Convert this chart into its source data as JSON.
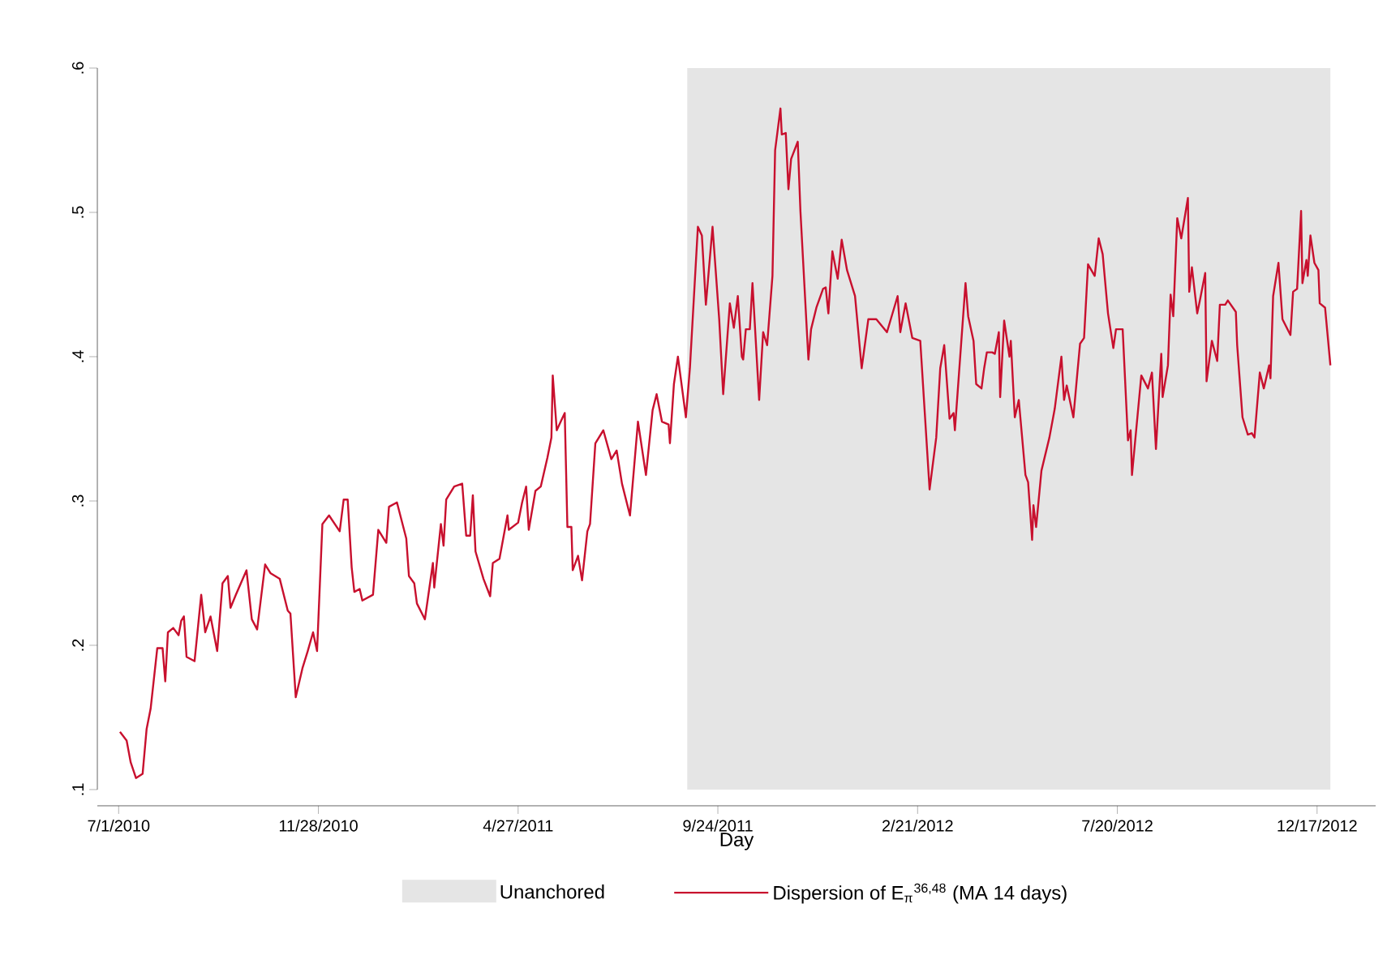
{
  "chart_data": {
    "type": "line",
    "xlabel": "Day",
    "xlim": [
      "2010-06-15",
      "2013-01-30"
    ],
    "ylim": [
      0.1,
      0.6
    ],
    "xticks": [
      {
        "value": "2010-07-01",
        "label": "7/1/2010"
      },
      {
        "value": "2010-11-28",
        "label": "11/28/2010"
      },
      {
        "value": "2011-04-27",
        "label": "4/27/2011"
      },
      {
        "value": "2011-09-24",
        "label": "9/24/2011"
      },
      {
        "value": "2012-02-21",
        "label": "2/21/2012"
      },
      {
        "value": "2012-07-20",
        "label": "7/20/2012"
      },
      {
        "value": "2012-12-17",
        "label": "12/17/2012"
      }
    ],
    "yticks": [
      {
        "value": 0.1,
        "label": ".1"
      },
      {
        "value": 0.2,
        "label": ".2"
      },
      {
        "value": 0.3,
        "label": ".3"
      },
      {
        "value": 0.4,
        "label": ".4"
      },
      {
        "value": 0.5,
        "label": ".5"
      },
      {
        "value": 0.6,
        "label": ".6"
      }
    ],
    "bands": [
      {
        "axis": "x",
        "from": "2011-09-01",
        "to": "2012-12-27",
        "label": "Unanchored",
        "color": "#e5e5e5"
      }
    ],
    "legend": "bottom",
    "series": [
      {
        "name": "Dispersion of E$_{π}$$^{36,48}$ (MA 14 days)",
        "color": "#c8102e",
        "x": [
          "2010-07-02",
          "2010-07-07",
          "2010-07-10",
          "2010-07-14",
          "2010-07-19",
          "2010-07-22",
          "2010-07-25",
          "2010-07-30",
          "2010-08-03",
          "2010-08-05",
          "2010-08-07",
          "2010-08-11",
          "2010-08-15",
          "2010-08-17",
          "2010-08-19",
          "2010-08-21",
          "2010-08-27",
          "2010-09-01",
          "2010-09-04",
          "2010-09-08",
          "2010-09-13",
          "2010-09-17",
          "2010-09-21",
          "2010-09-23",
          "2010-09-27",
          "2010-10-05",
          "2010-10-09",
          "2010-10-13",
          "2010-10-19",
          "2010-10-23",
          "2010-10-30",
          "2010-11-05",
          "2010-11-07",
          "2010-11-11",
          "2010-11-16",
          "2010-11-20",
          "2010-11-24",
          "2010-11-27",
          "2010-12-01",
          "2010-12-06",
          "2010-12-14",
          "2010-12-17",
          "2010-12-20",
          "2010-12-23",
          "2010-12-25",
          "2010-12-29",
          "2010-12-31",
          "2011-01-08",
          "2011-01-12",
          "2011-01-18",
          "2011-01-20",
          "2011-01-26",
          "2011-02-02",
          "2011-02-04",
          "2011-02-08",
          "2011-02-10",
          "2011-02-16",
          "2011-02-22",
          "2011-02-23",
          "2011-02-28",
          "2011-03-02",
          "2011-03-04",
          "2011-03-10",
          "2011-03-16",
          "2011-03-19",
          "2011-03-22",
          "2011-03-24",
          "2011-03-26",
          "2011-04-01",
          "2011-04-06",
          "2011-04-08",
          "2011-04-13",
          "2011-04-19",
          "2011-04-20",
          "2011-04-27",
          "2011-04-30",
          "2011-05-03",
          "2011-05-05",
          "2011-05-10",
          "2011-05-14",
          "2011-05-19",
          "2011-05-22",
          "2011-05-23",
          "2011-05-26",
          "2011-05-29",
          "2011-06-01",
          "2011-06-03",
          "2011-06-06",
          "2011-06-07",
          "2011-06-11",
          "2011-06-14",
          "2011-06-18",
          "2011-06-20",
          "2011-06-24",
          "2011-06-30",
          "2011-07-06",
          "2011-07-10",
          "2011-07-14",
          "2011-07-20",
          "2011-07-26",
          "2011-08-01",
          "2011-08-06",
          "2011-08-09",
          "2011-08-13",
          "2011-08-18",
          "2011-08-19",
          "2011-08-22",
          "2011-08-25",
          "2011-08-31",
          "2011-09-03",
          "2011-09-09",
          "2011-09-12",
          "2011-09-15",
          "2011-09-20",
          "2011-09-25",
          "2011-09-28",
          "2011-10-03",
          "2011-10-06",
          "2011-10-09",
          "2011-10-12",
          "2011-10-13",
          "2011-10-15",
          "2011-10-18",
          "2011-10-20",
          "2011-10-25",
          "2011-10-28",
          "2011-10-31",
          "2011-11-04",
          "2011-11-06",
          "2011-11-10",
          "2011-11-11",
          "2011-11-14",
          "2011-11-16",
          "2011-11-18",
          "2011-11-23",
          "2011-11-25",
          "2011-12-01",
          "2011-12-03",
          "2011-12-07",
          "2011-12-12",
          "2011-12-14",
          "2011-12-16",
          "2011-12-19",
          "2011-12-23",
          "2011-12-26",
          "2011-12-30",
          "2012-01-05",
          "2012-01-10",
          "2012-01-15",
          "2012-01-18",
          "2012-01-21",
          "2012-01-29",
          "2012-02-06",
          "2012-02-08",
          "2012-02-12",
          "2012-02-17",
          "2012-02-23",
          "2012-03-01",
          "2012-03-06",
          "2012-03-09",
          "2012-03-12",
          "2012-03-16",
          "2012-03-19",
          "2012-03-20",
          "2012-03-28",
          "2012-03-30",
          "2012-04-03",
          "2012-04-05",
          "2012-04-09",
          "2012-04-11",
          "2012-04-13",
          "2012-04-17",
          "2012-04-19",
          "2012-04-22",
          "2012-04-23",
          "2012-04-26",
          "2012-04-30",
          "2012-05-01",
          "2012-05-04",
          "2012-05-07",
          "2012-05-12",
          "2012-05-14",
          "2012-05-17",
          "2012-05-18",
          "2012-05-20",
          "2012-05-24",
          "2012-05-30",
          "2012-06-03",
          "2012-06-08",
          "2012-06-10",
          "2012-06-12",
          "2012-06-17",
          "2012-06-20",
          "2012-06-22",
          "2012-06-25",
          "2012-06-28",
          "2012-07-03",
          "2012-07-06",
          "2012-07-09",
          "2012-07-13",
          "2012-07-17",
          "2012-07-19",
          "2012-07-24",
          "2012-07-28",
          "2012-07-30",
          "2012-07-31",
          "2012-08-07",
          "2012-08-12",
          "2012-08-15",
          "2012-08-18",
          "2012-08-22",
          "2012-08-23",
          "2012-08-27",
          "2012-08-29",
          "2012-08-31",
          "2012-09-03",
          "2012-09-06",
          "2012-09-11",
          "2012-09-12",
          "2012-09-14",
          "2012-09-18",
          "2012-09-20",
          "2012-09-24",
          "2012-09-25",
          "2012-09-29",
          "2012-10-03",
          "2012-10-05",
          "2012-10-09",
          "2012-10-11",
          "2012-10-17",
          "2012-10-18",
          "2012-10-22",
          "2012-10-26",
          "2012-10-29",
          "2012-10-31",
          "2012-11-04",
          "2012-11-07",
          "2012-11-11",
          "2012-11-12",
          "2012-11-14",
          "2012-11-18",
          "2012-11-21",
          "2012-11-27",
          "2012-11-29",
          "2012-12-02",
          "2012-12-05",
          "2012-12-06",
          "2012-12-09",
          "2012-12-10",
          "2012-12-12",
          "2012-12-15",
          "2012-12-18",
          "2012-12-19",
          "2012-12-23",
          "2012-12-27"
        ],
        "values": [
          0.14,
          0.134,
          0.119,
          0.108,
          0.111,
          0.142,
          0.156,
          0.198,
          0.198,
          0.175,
          0.209,
          0.212,
          0.207,
          0.217,
          0.22,
          0.192,
          0.189,
          0.235,
          0.209,
          0.22,
          0.196,
          0.243,
          0.248,
          0.226,
          0.235,
          0.252,
          0.218,
          0.211,
          0.256,
          0.25,
          0.246,
          0.224,
          0.222,
          0.164,
          0.184,
          0.196,
          0.209,
          0.196,
          0.284,
          0.29,
          0.279,
          0.301,
          0.301,
          0.254,
          0.237,
          0.239,
          0.231,
          0.235,
          0.28,
          0.271,
          0.296,
          0.299,
          0.274,
          0.248,
          0.243,
          0.229,
          0.218,
          0.257,
          0.24,
          0.284,
          0.269,
          0.301,
          0.31,
          0.312,
          0.276,
          0.276,
          0.304,
          0.265,
          0.246,
          0.234,
          0.257,
          0.26,
          0.29,
          0.28,
          0.285,
          0.299,
          0.31,
          0.28,
          0.307,
          0.31,
          0.33,
          0.344,
          0.387,
          0.349,
          0.355,
          0.361,
          0.282,
          0.282,
          0.252,
          0.262,
          0.245,
          0.279,
          0.284,
          0.34,
          0.349,
          0.329,
          0.335,
          0.312,
          0.29,
          0.355,
          0.318,
          0.363,
          0.374,
          0.355,
          0.353,
          0.34,
          0.381,
          0.4,
          0.358,
          0.392,
          0.49,
          0.484,
          0.436,
          0.49,
          0.426,
          0.374,
          0.437,
          0.42,
          0.442,
          0.4,
          0.398,
          0.419,
          0.419,
          0.451,
          0.37,
          0.417,
          0.408,
          0.456,
          0.543,
          0.572,
          0.554,
          0.555,
          0.516,
          0.537,
          0.549,
          0.501,
          0.398,
          0.419,
          0.434,
          0.447,
          0.448,
          0.43,
          0.473,
          0.454,
          0.481,
          0.46,
          0.442,
          0.392,
          0.426,
          0.426,
          0.426,
          0.417,
          0.442,
          0.417,
          0.437,
          0.413,
          0.411,
          0.308,
          0.344,
          0.392,
          0.408,
          0.357,
          0.361,
          0.349,
          0.451,
          0.428,
          0.411,
          0.381,
          0.378,
          0.392,
          0.403,
          0.403,
          0.402,
          0.417,
          0.372,
          0.425,
          0.4,
          0.411,
          0.358,
          0.37,
          0.318,
          0.313,
          0.273,
          0.297,
          0.282,
          0.321,
          0.344,
          0.364,
          0.4,
          0.37,
          0.38,
          0.358,
          0.389,
          0.409,
          0.413,
          0.464,
          0.456,
          0.482,
          0.471,
          0.43,
          0.406,
          0.419,
          0.419,
          0.342,
          0.349,
          0.318,
          0.387,
          0.378,
          0.389,
          0.336,
          0.402,
          0.372,
          0.394,
          0.443,
          0.428,
          0.496,
          0.482,
          0.51,
          0.445,
          0.462,
          0.43,
          0.439,
          0.458,
          0.383,
          0.411,
          0.397,
          0.436,
          0.436,
          0.439,
          0.431,
          0.408,
          0.358,
          0.346,
          0.347,
          0.344,
          0.389,
          0.378,
          0.394,
          0.385,
          0.442,
          0.465,
          0.426,
          0.415,
          0.445,
          0.447,
          0.501,
          0.451,
          0.467,
          0.456,
          0.484,
          0.465,
          0.46,
          0.437,
          0.434,
          0.394
        ]
      }
    ]
  }
}
